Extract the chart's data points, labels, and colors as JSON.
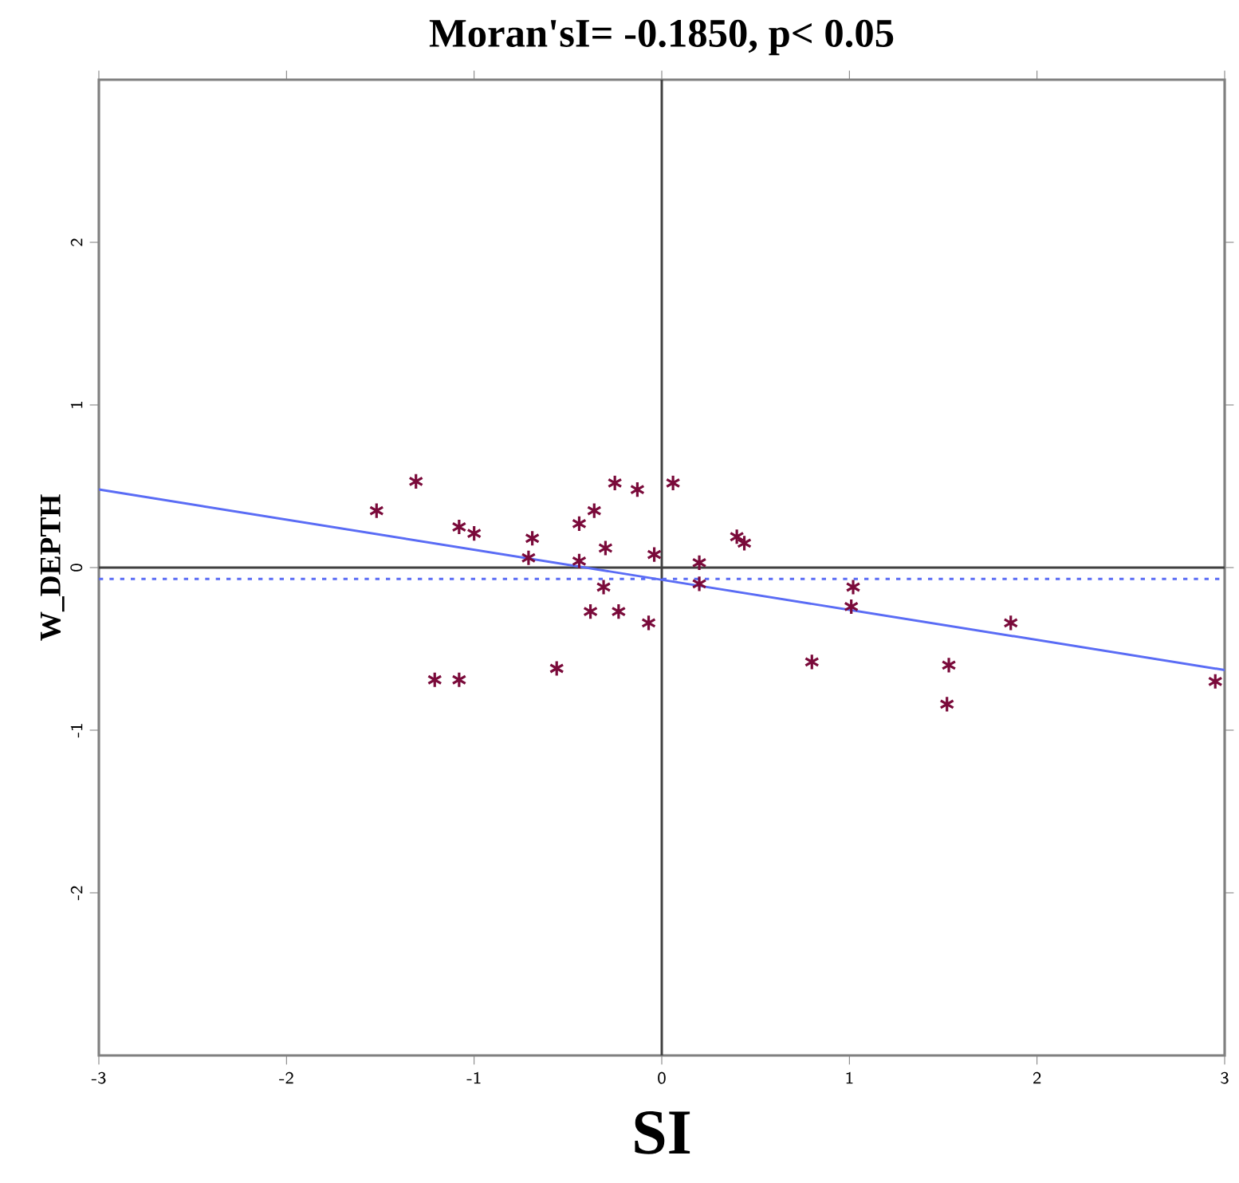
{
  "chart_data": {
    "type": "scatter",
    "title": "Moran'sI= -0.1850, p< 0.05",
    "xlabel": "SI",
    "ylabel": "W_DEPTH",
    "xlim": [
      -3,
      3
    ],
    "ylim": [
      -3,
      3
    ],
    "xticks": [
      -3,
      -2,
      -1,
      0,
      1,
      2,
      3
    ],
    "yticks": [
      -2,
      -1,
      0,
      1,
      2
    ],
    "grid": false,
    "series": [
      {
        "marker": "cross",
        "color": "#7a0a3a",
        "x": [
          -1.52,
          -1.31,
          -1.08,
          -1.0,
          -0.69,
          -0.71,
          -0.44,
          -0.36,
          -0.25,
          -0.13,
          0.06,
          -0.3,
          -0.44,
          -0.04,
          0.4,
          0.44,
          0.2,
          0.2,
          -0.31,
          -0.38,
          -0.23,
          -0.07,
          -0.56,
          -1.21,
          -1.08,
          1.02,
          1.01,
          0.8,
          1.53,
          1.52,
          1.86,
          2.95
        ],
        "values": [
          0.35,
          0.53,
          0.25,
          0.21,
          0.18,
          0.06,
          0.27,
          0.35,
          0.52,
          0.48,
          0.52,
          0.12,
          0.04,
          0.08,
          0.19,
          0.15,
          0.03,
          -0.1,
          -0.12,
          -0.27,
          -0.27,
          -0.34,
          -0.62,
          -0.69,
          -0.69,
          -0.12,
          -0.24,
          -0.58,
          -0.6,
          -0.84,
          -0.34,
          -0.7
        ]
      },
      {
        "type": "line",
        "color": "#5a6cf5",
        "x": [
          -3,
          3
        ],
        "values": [
          0.48,
          -0.63
        ]
      }
    ],
    "ref_lines": [
      {
        "axis": "x",
        "value": 0,
        "color": "#404040",
        "line_style": "solid"
      },
      {
        "axis": "y",
        "value": 0,
        "color": "#404040",
        "line_style": "solid"
      },
      {
        "axis": "y",
        "value": -0.07,
        "color": "#5a6cf5",
        "line_style": "dotted"
      }
    ]
  }
}
